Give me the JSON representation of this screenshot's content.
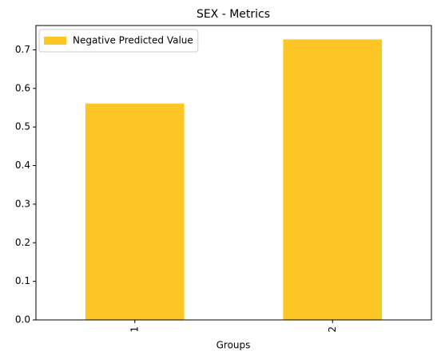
{
  "chart_data": {
    "type": "bar",
    "title": "SEX - Metrics",
    "x_label": "Groups",
    "categories": [
      "1",
      "2"
    ],
    "series": [
      {
        "name": "Negative Predicted Value",
        "color": "#fdc624",
        "values": [
          0.561,
          0.727
        ]
      }
    ],
    "ylim": [
      0,
      0.763
    ],
    "yticks": [
      {
        "value": 0,
        "label": "0.0"
      },
      {
        "value": 0.1,
        "label": "0.1"
      },
      {
        "value": 0.2,
        "label": "0.2"
      },
      {
        "value": 0.3,
        "label": "0.3"
      },
      {
        "value": 0.4,
        "label": "0.4"
      },
      {
        "value": 0.5,
        "label": "0.5"
      },
      {
        "value": 0.6,
        "label": "0.6"
      },
      {
        "value": 0.7,
        "label": "0.7"
      }
    ],
    "legend": "upper left",
    "grid": false
  }
}
